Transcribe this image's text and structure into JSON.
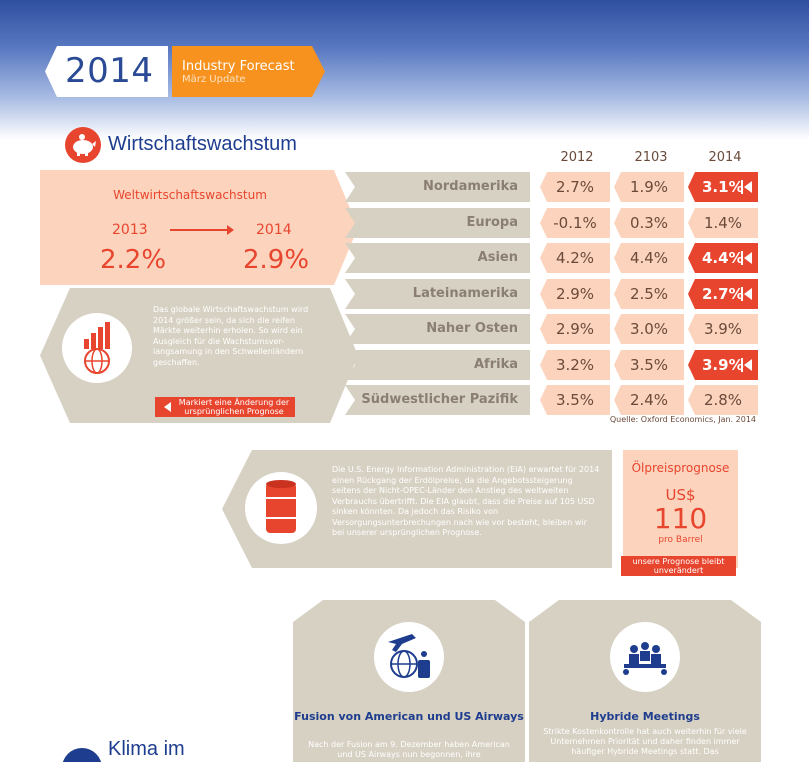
{
  "header": {
    "year": "2014",
    "forecast_title": "Industry Forecast",
    "forecast_subtitle": "März Update"
  },
  "section1": {
    "title": "Wirtschaftswachstum",
    "years": [
      "2012",
      "2103",
      "2014"
    ],
    "world": {
      "label": "Weltwirtschaftswachstum",
      "year_from": "2013",
      "year_to": "2014",
      "value_from": "2.2%",
      "value_to": "2.9%"
    },
    "description": "Das globale Wirtschaftswachstum wird 2014 größer sein, da sich die reifen Märkte weiterhin erholen. So wird ein Ausgleich für die Wachstumsver-langsamung in den Schwellenländern geschaffen.",
    "legend_tag": "Markiert eine Änderung der ursprünglichen Prognose",
    "regions": [
      {
        "name": "Nordamerika",
        "v2012": "2.7%",
        "v2013": "1.9%",
        "v2014": "3.1%",
        "changed": true
      },
      {
        "name": "Europa",
        "v2012": "-0.1%",
        "v2013": "0.3%",
        "v2014": "1.4%",
        "changed": false
      },
      {
        "name": "Asien",
        "v2012": "4.2%",
        "v2013": "4.4%",
        "v2014": "4.4%",
        "changed": true
      },
      {
        "name": "Lateinamerika",
        "v2012": "2.9%",
        "v2013": "2.5%",
        "v2014": "2.7%",
        "changed": true
      },
      {
        "name": "Naher Osten",
        "v2012": "2.9%",
        "v2013": "3.0%",
        "v2014": "3.9%",
        "changed": false
      },
      {
        "name": "Afrika",
        "v2012": "3.2%",
        "v2013": "3.5%",
        "v2014": "3.9%",
        "changed": true
      },
      {
        "name": "Südwestlicher Pazifik",
        "v2012": "3.5%",
        "v2013": "2.4%",
        "v2014": "2.8%",
        "changed": false
      }
    ],
    "source": "Quelle: Oxford Economics, Jan. 2014"
  },
  "oil": {
    "text": "Die U.S. Energy Information Administration (EIA) erwartet für 2014 einen Rückgang der Erdölpreise, da die Angebotssteigerung seitens der Nicht-OPEC-Länder den Anstieg des weltweiten Verbrauchs übertrifft. Die EIA glaubt, dass die Preise auf 105 USD sinken könnten. Da jedoch das Risiko von Versorgungsunterbrechungen nach wie vor besteht, bleiben wir bei unserer ursprünglichen Prognose.",
    "title": "Ölpreisprognose",
    "currency": "US$",
    "value": "110",
    "unit": "pro Barrel",
    "tag": "unsere Prognose bleibt unverändert"
  },
  "cards": [
    {
      "title": "Fusion von American und US Airways",
      "text": "Nach der Fusion am 9. Dezember haben American und US Airways nun begonnen, ihre"
    },
    {
      "title": "Hybride Meetings",
      "text": "Strikte Kostenkontrolle hat auch weiterhin für viele Unternehmen Priorität und daher finden immer häufiger Hybride Meetings statt. Das"
    }
  ],
  "section2": {
    "title": "Klima im"
  },
  "colors": {
    "accent": "#e8452e",
    "orange": "#f7921e",
    "navy": "#1e3d8f",
    "peach": "#fcd4bd",
    "taupe": "#d7d1c3"
  }
}
